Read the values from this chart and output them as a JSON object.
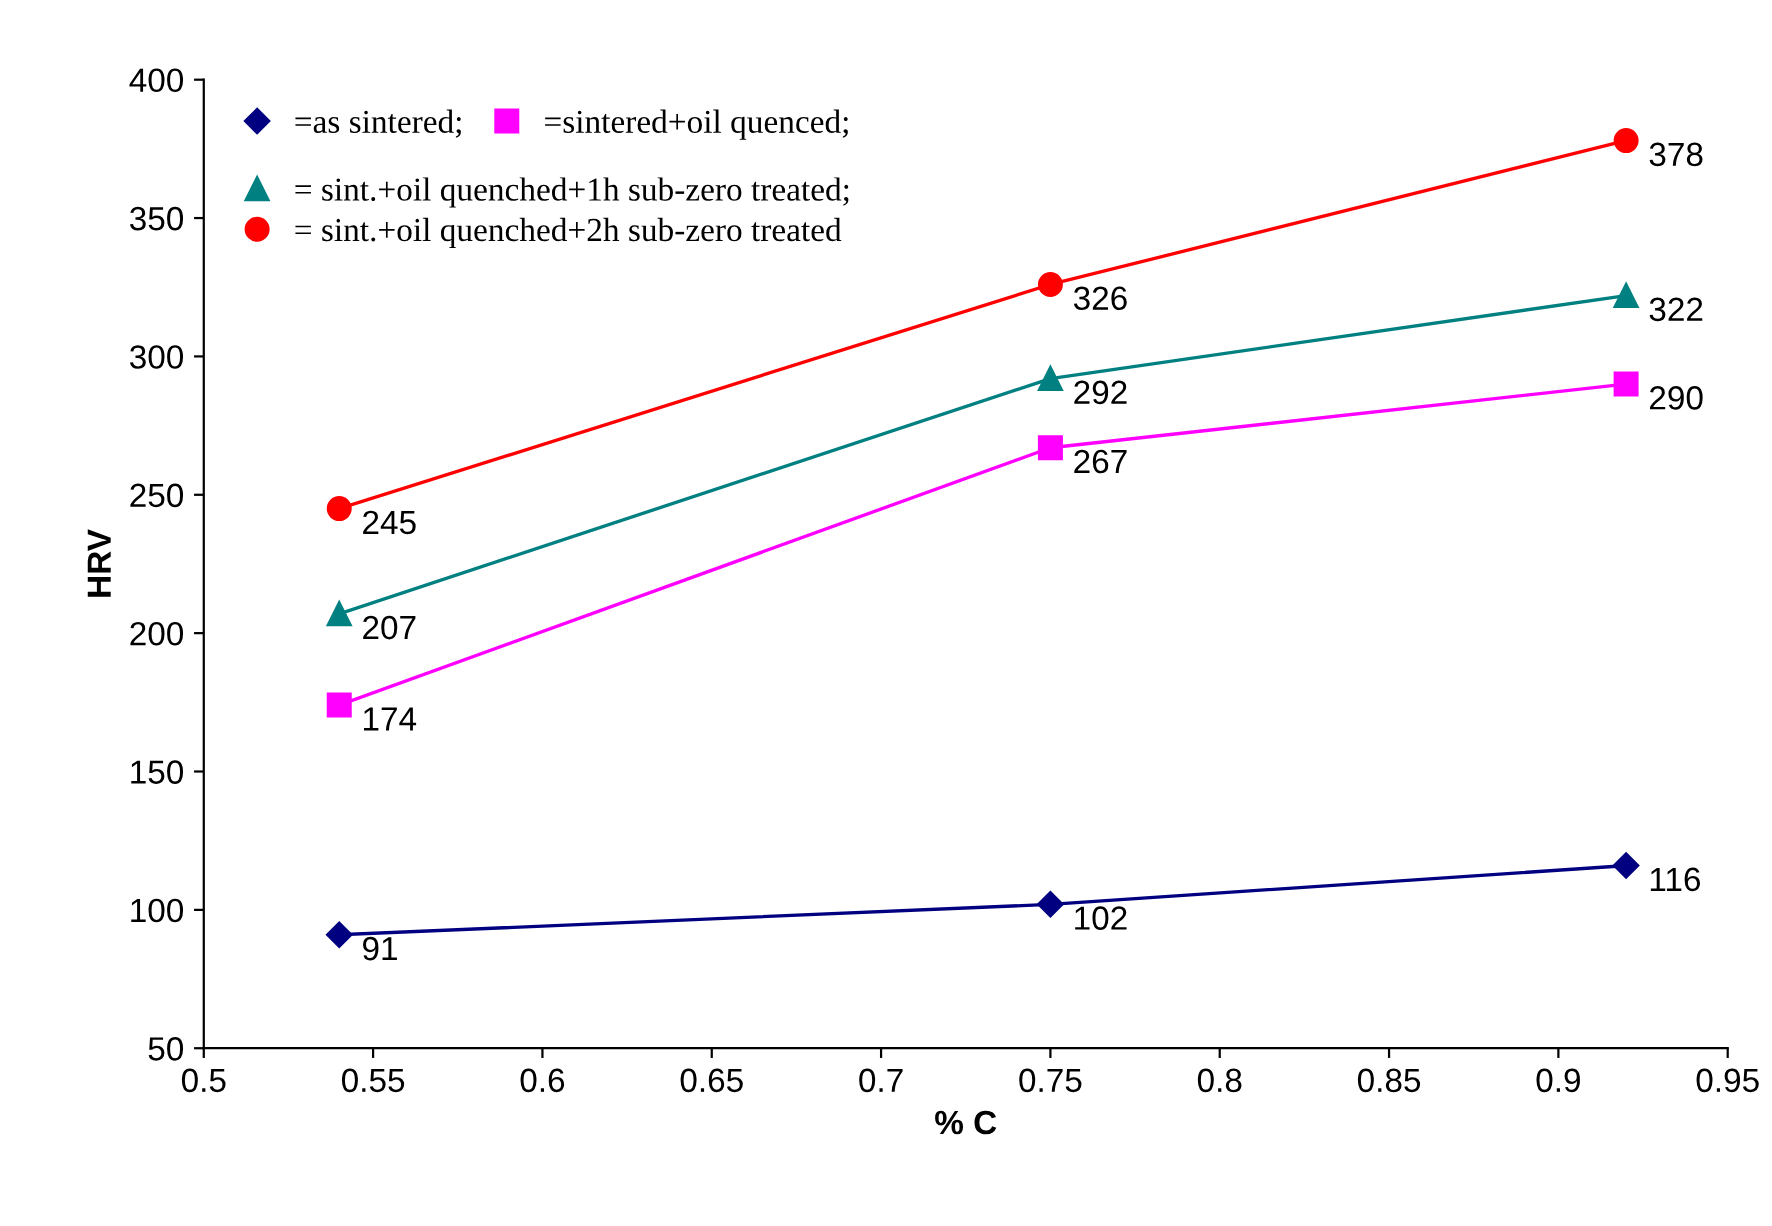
{
  "chart_data": {
    "type": "line",
    "xlabel": "% C",
    "ylabel": "HRV",
    "x": [
      0.54,
      0.75,
      0.92
    ],
    "series": [
      {
        "name": "=as sintered;",
        "color": "#000080",
        "marker": "diamond",
        "values": [
          91,
          102,
          116
        ]
      },
      {
        "name": "=sintered+oil quenced;",
        "color": "#ff00ff",
        "marker": "square",
        "values": [
          174,
          267,
          290
        ]
      },
      {
        "name": "= sint.+oil quenched+1h sub-zero treated;",
        "color": "#008080",
        "marker": "triangle",
        "values": [
          207,
          292,
          322
        ]
      },
      {
        "name": "= sint.+oil quenched+2h sub-zero treated",
        "color": "#ff0000",
        "marker": "circle",
        "values": [
          245,
          326,
          378
        ]
      }
    ],
    "xlim": [
      0.5,
      0.95
    ],
    "xticks": [
      0.5,
      0.55,
      0.6,
      0.65,
      0.7,
      0.75,
      0.8,
      0.85,
      0.9,
      0.95
    ],
    "ylim": [
      50,
      400
    ],
    "yticks": [
      50,
      100,
      150,
      200,
      250,
      300,
      350,
      400
    ],
    "data_labels": true,
    "grid": false,
    "legend": "top left",
    "line_style": "solid"
  }
}
